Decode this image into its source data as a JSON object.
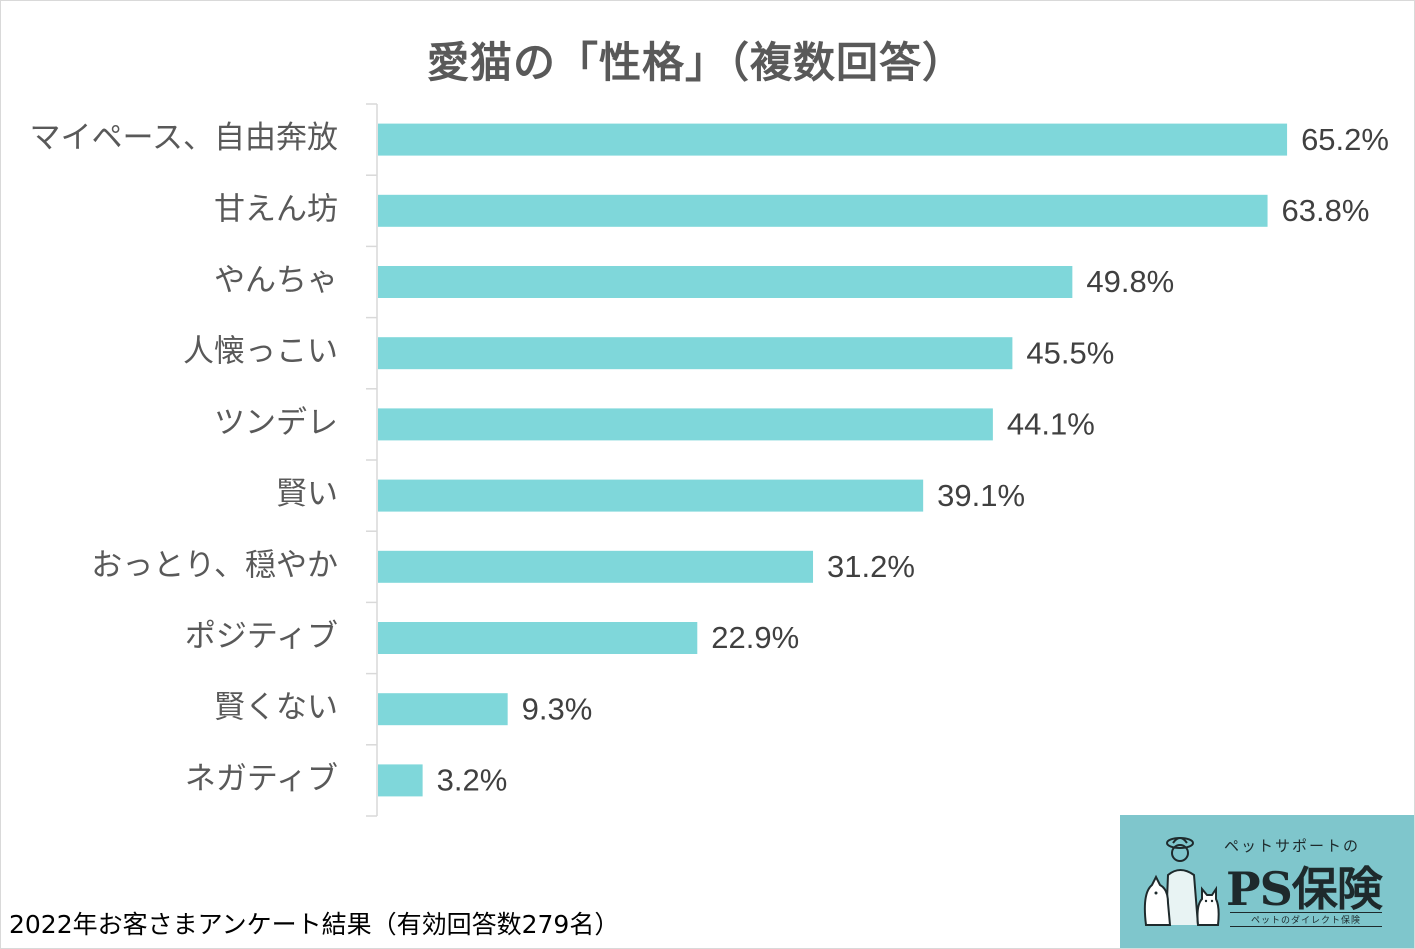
{
  "chart_data": {
    "type": "bar",
    "orientation": "horizontal",
    "title": "愛猫の「性格」（複数回答）",
    "categories": [
      "マイペース、自由奔放",
      "甘えん坊",
      "やんちゃ",
      "人懐っこい",
      "ツンデレ",
      "賢い",
      "おっとり、穏やか",
      "ポジティブ",
      "賢くない",
      "ネガティブ"
    ],
    "values": [
      65.2,
      63.8,
      49.8,
      45.5,
      44.1,
      39.1,
      31.2,
      22.9,
      9.3,
      3.2
    ],
    "value_labels": [
      "65.2%",
      "63.8%",
      "49.8%",
      "45.5%",
      "44.1%",
      "39.1%",
      "31.2%",
      "22.9%",
      "9.3%",
      "3.2%"
    ],
    "unit": "%",
    "xlim": [
      0,
      70
    ],
    "grid": false,
    "legend": "none",
    "bar_color": "#7fd7da"
  },
  "footnote": "2022年お客さまアンケート結果（有効回答数279名）",
  "logo": {
    "tagline": "ペットサポートの",
    "name": "PS保険",
    "sub": "ペットのダイレクト保険",
    "icon": "owner-dog-cat-illustration",
    "background": "#7fc6cc"
  }
}
